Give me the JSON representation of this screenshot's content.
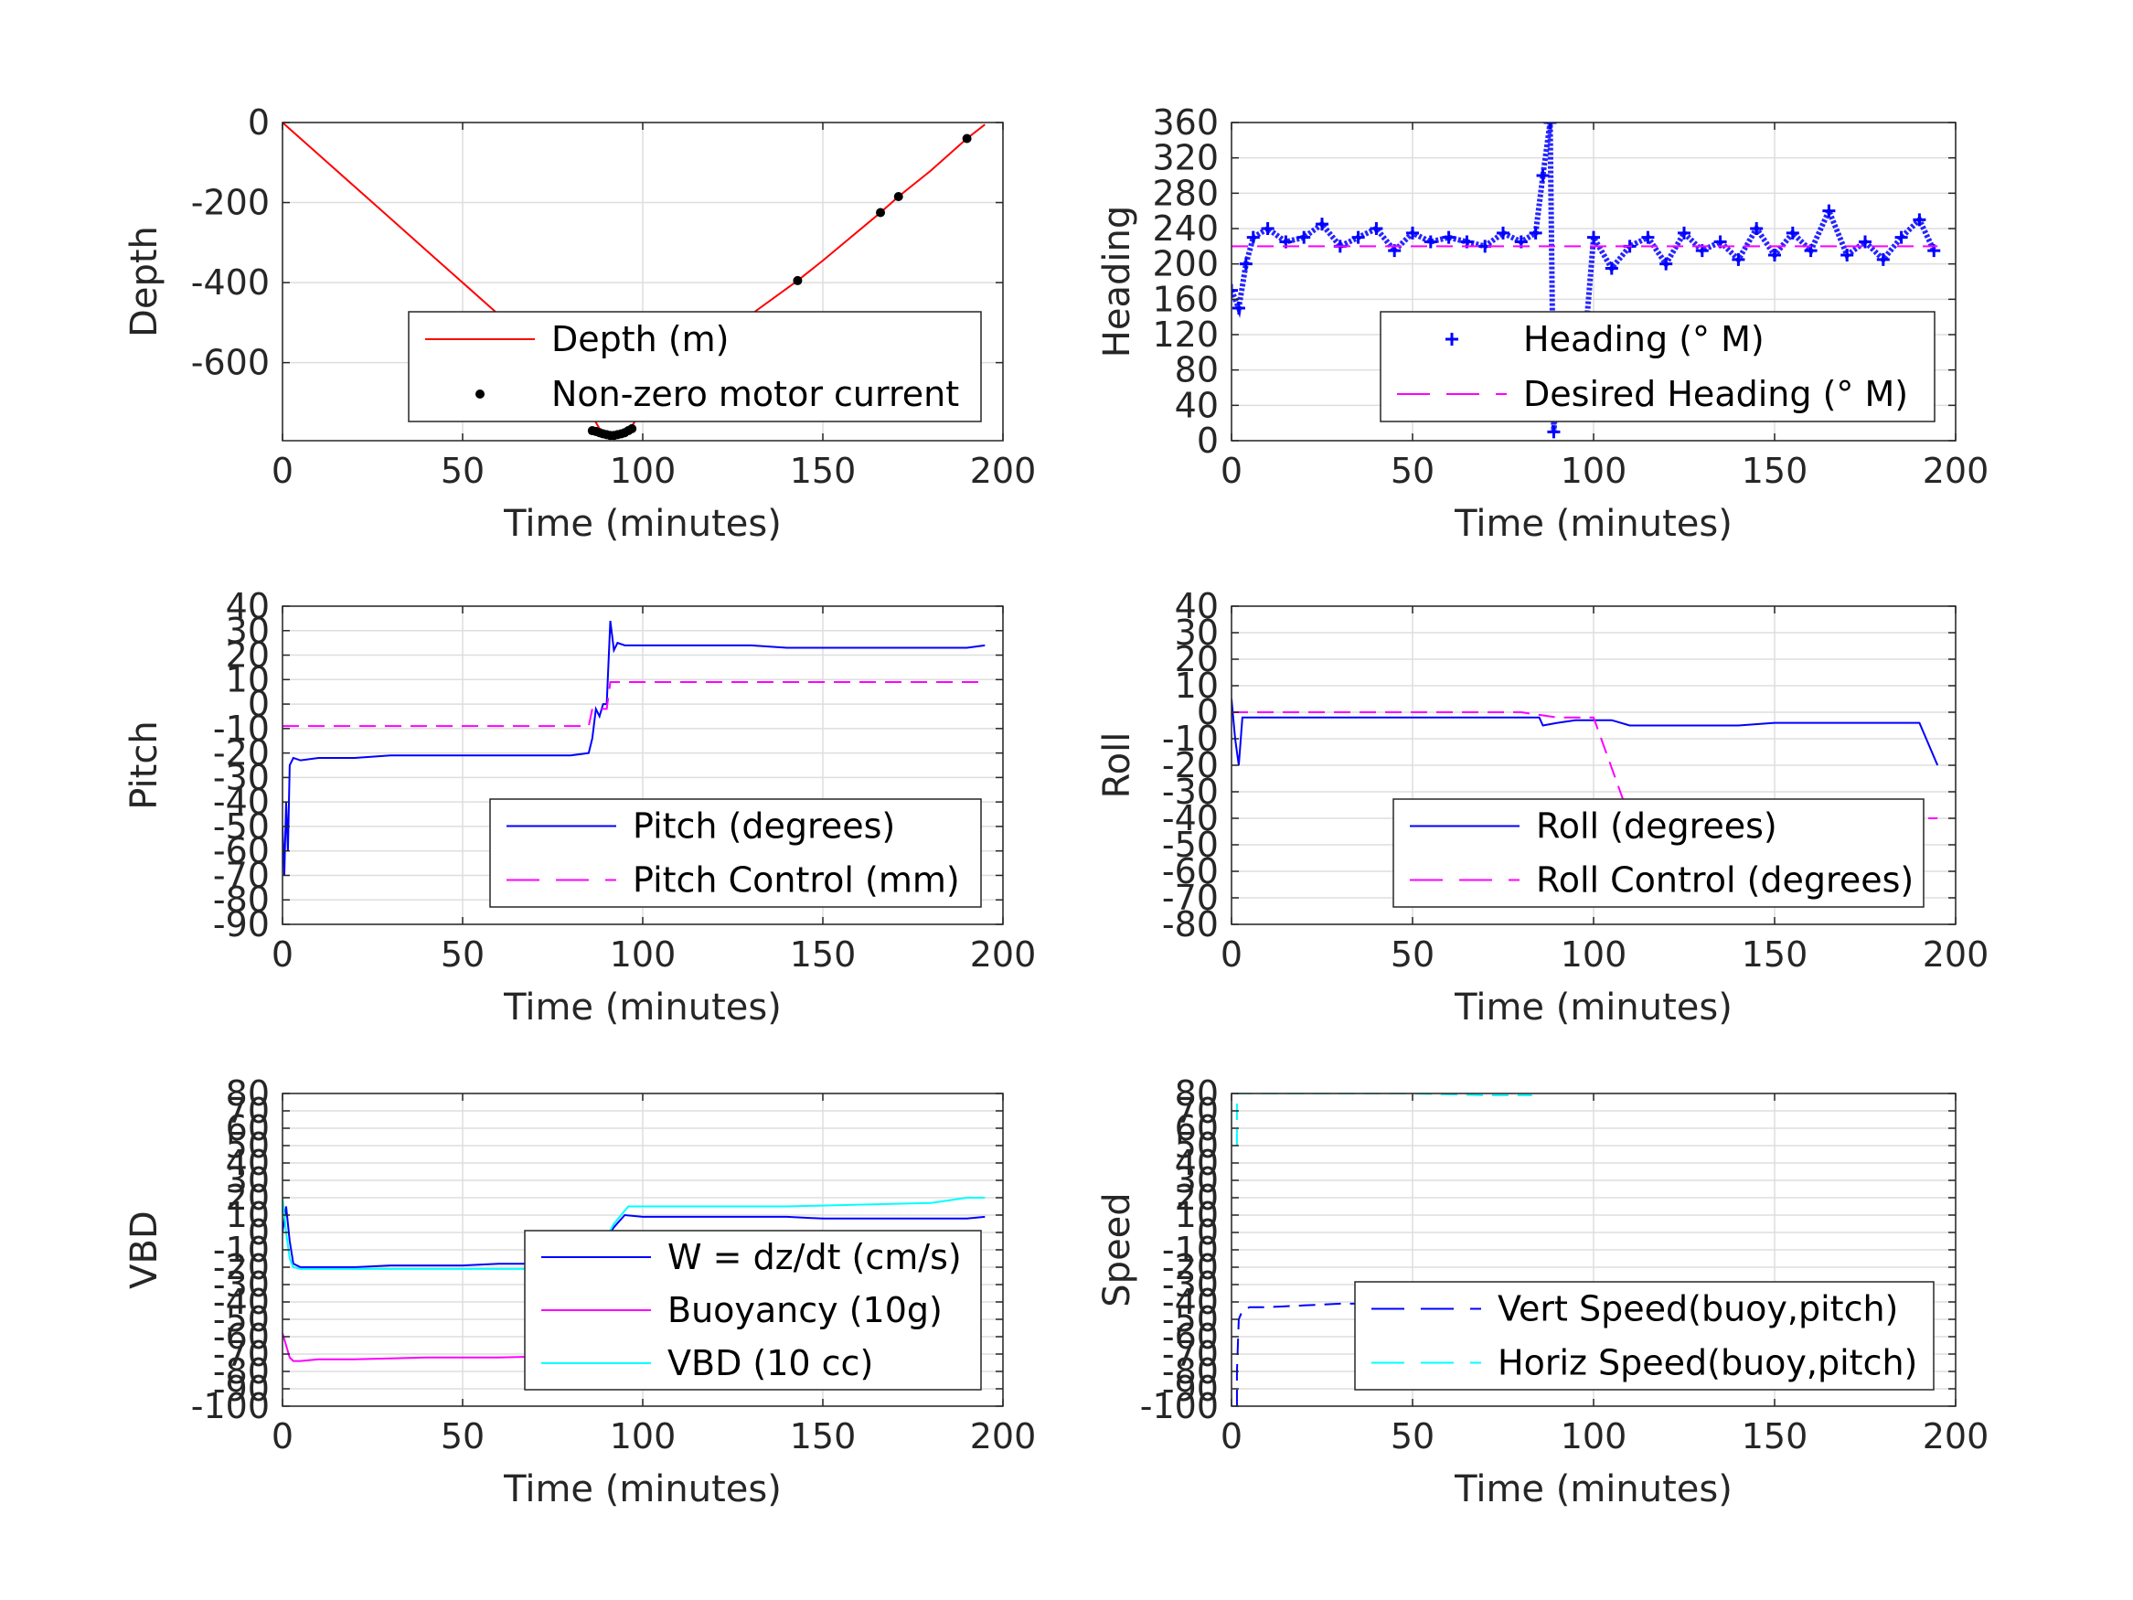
{
  "chart_data": [
    {
      "type": "line",
      "xlabel": "Time (minutes)",
      "ylabel": "Depth",
      "xlim": [
        0,
        200
      ],
      "ylim": [
        -795,
        0
      ],
      "xticks": [
        "0",
        "50",
        "100",
        "150",
        "200"
      ],
      "yticks": [
        0,
        -200,
        -400,
        -600
      ],
      "ytick_labels": [
        "0",
        "-200",
        "-400",
        "-600"
      ],
      "grid": true,
      "legend_position": "bottom-right",
      "series": [
        {
          "name": "Depth (m)",
          "color": "#ff0000",
          "style": "solid",
          "x": [
            0,
            10,
            20,
            30,
            40,
            50,
            60,
            70,
            80,
            88,
            92,
            96,
            100,
            110,
            120,
            130,
            143,
            150,
            160,
            166,
            171,
            180,
            190,
            195
          ],
          "y": [
            0,
            -80,
            -160,
            -240,
            -320,
            -400,
            -480,
            -560,
            -640,
            -765,
            -785,
            -770,
            -720,
            -640,
            -560,
            -480,
            -395,
            -345,
            -270,
            -225,
            -185,
            -120,
            -40,
            -5
          ]
        },
        {
          "name": "Non-zero motor current",
          "color": "#000000",
          "style": "points",
          "x": [
            86,
            87,
            88,
            89,
            90,
            91,
            92,
            93,
            94,
            95,
            96,
            97,
            143,
            166,
            171,
            190
          ],
          "y": [
            -770,
            -772,
            -775,
            -778,
            -780,
            -782,
            -782,
            -780,
            -778,
            -775,
            -770,
            -765,
            -395,
            -225,
            -185,
            -40
          ]
        }
      ]
    },
    {
      "type": "line",
      "xlabel": "Time (minutes)",
      "ylabel": "Heading",
      "xlim": [
        0,
        200
      ],
      "ylim": [
        0,
        360
      ],
      "xticks": [
        "0",
        "50",
        "100",
        "150",
        "200"
      ],
      "yticks": [
        0,
        40,
        80,
        120,
        160,
        200,
        240,
        280,
        320,
        360
      ],
      "ytick_labels": [
        "0",
        "40",
        "80",
        "120",
        "160",
        "200",
        "240",
        "280",
        "320",
        "360"
      ],
      "grid": true,
      "legend_position": "bottom-right",
      "series": [
        {
          "name": "Heading (° M)",
          "color": "#0000ff",
          "style": "plus",
          "x": [
            0,
            2,
            4,
            6,
            10,
            15,
            20,
            25,
            30,
            35,
            40,
            45,
            50,
            55,
            60,
            65,
            70,
            75,
            80,
            84,
            86,
            88,
            89,
            90,
            91,
            93,
            95,
            97,
            100,
            105,
            110,
            115,
            120,
            125,
            130,
            135,
            140,
            145,
            150,
            155,
            160,
            165,
            170,
            175,
            180,
            185,
            190,
            194
          ],
          "y": [
            170,
            150,
            200,
            230,
            240,
            225,
            230,
            245,
            220,
            230,
            240,
            215,
            235,
            225,
            230,
            225,
            220,
            235,
            225,
            235,
            300,
            360,
            10,
            60,
            100,
            70,
            40,
            80,
            230,
            195,
            220,
            230,
            200,
            235,
            215,
            225,
            205,
            240,
            210,
            235,
            215,
            260,
            210,
            225,
            205,
            230,
            250,
            215
          ]
        },
        {
          "name": "Desired Heading (° M)",
          "color": "#ff00ff",
          "style": "dashed",
          "x": [
            0,
            195
          ],
          "y": [
            220,
            220
          ]
        }
      ]
    },
    {
      "type": "line",
      "xlabel": "Time (minutes)",
      "ylabel": "Pitch",
      "xlim": [
        0,
        200
      ],
      "ylim": [
        -90,
        40
      ],
      "xticks": [
        "0",
        "50",
        "100",
        "150",
        "200"
      ],
      "yticks": [
        40,
        30,
        20,
        10,
        0,
        -10,
        -20,
        -30,
        -40,
        -50,
        -60,
        -70,
        -80,
        -90
      ],
      "ytick_labels": [
        "40",
        "30",
        "20",
        "10",
        "0",
        "-10",
        "-20",
        "-30",
        "-40",
        "-50",
        "-60",
        "-70",
        "-80",
        "-90"
      ],
      "grid": true,
      "legend_position": "bottom-right",
      "series": [
        {
          "name": "Pitch (degrees)",
          "color": "#0000ff",
          "style": "solid",
          "x": [
            0,
            0.5,
            1,
            1.5,
            2,
            3,
            5,
            10,
            20,
            30,
            40,
            50,
            60,
            70,
            80,
            85,
            86,
            87,
            88,
            89,
            90,
            91,
            92,
            93,
            95,
            100,
            110,
            120,
            130,
            140,
            150,
            160,
            170,
            180,
            190,
            195
          ],
          "y": [
            -50,
            -70,
            -40,
            -60,
            -25,
            -22,
            -23,
            -22,
            -22,
            -21,
            -21,
            -21,
            -21,
            -21,
            -21,
            -20,
            -14,
            -2,
            -5,
            0,
            0,
            34,
            22,
            25,
            24,
            24,
            24,
            24,
            24,
            23,
            23,
            23,
            23,
            23,
            23,
            24
          ]
        },
        {
          "name": "Pitch Control (mm)",
          "color": "#ff00ff",
          "style": "dashed",
          "x": [
            0,
            85,
            86,
            90,
            91,
            195
          ],
          "y": [
            -9,
            -9,
            -2,
            -2,
            9,
            9
          ]
        }
      ]
    },
    {
      "type": "line",
      "xlabel": "Time (minutes)",
      "ylabel": "Roll",
      "xlim": [
        0,
        200
      ],
      "ylim": [
        -80,
        40
      ],
      "xticks": [
        "0",
        "50",
        "100",
        "150",
        "200"
      ],
      "yticks": [
        40,
        30,
        20,
        10,
        0,
        -10,
        -20,
        -30,
        -40,
        -50,
        -60,
        -70,
        -80
      ],
      "ytick_labels": [
        "40",
        "30",
        "20",
        "10",
        "0",
        "-10",
        "-20",
        "-30",
        "-40",
        "-50",
        "-60",
        "-70",
        "-80"
      ],
      "grid": true,
      "legend_position": "bottom-right",
      "series": [
        {
          "name": "Roll (degrees)",
          "color": "#0000ff",
          "style": "solid",
          "x": [
            0,
            1,
            2,
            3,
            5,
            10,
            20,
            30,
            40,
            50,
            60,
            70,
            80,
            85,
            86,
            90,
            95,
            100,
            105,
            110,
            120,
            130,
            140,
            150,
            160,
            170,
            180,
            190,
            195
          ],
          "y": [
            5,
            -10,
            -20,
            -2,
            -2,
            -2,
            -2,
            -2,
            -2,
            -2,
            -2,
            -2,
            -2,
            -2,
            -5,
            -4,
            -3,
            -3,
            -3,
            -5,
            -5,
            -5,
            -5,
            -4,
            -4,
            -4,
            -4,
            -4,
            -20
          ]
        },
        {
          "name": "Roll Control (degrees)",
          "color": "#ff00ff",
          "style": "dashed",
          "x": [
            0,
            10,
            20,
            40,
            60,
            80,
            90,
            100,
            110,
            120,
            140,
            150,
            160,
            180,
            195
          ],
          "y": [
            0,
            0,
            0,
            0,
            0,
            0,
            -2,
            -2,
            -40,
            -40,
            -40,
            -40,
            -40,
            -40,
            -40
          ]
        }
      ]
    },
    {
      "type": "line",
      "xlabel": "Time (minutes)",
      "ylabel": "VBD",
      "xlim": [
        0,
        200
      ],
      "ylim": [
        -100,
        80
      ],
      "xticks": [
        "0",
        "50",
        "100",
        "150",
        "200"
      ],
      "yticks": [
        80,
        70,
        60,
        50,
        40,
        30,
        20,
        10,
        0,
        -10,
        -20,
        -30,
        -40,
        -50,
        -60,
        -70,
        -80,
        -90,
        -100
      ],
      "ytick_labels": [
        "80",
        "70",
        "60",
        "50",
        "40",
        "30",
        "20",
        "10",
        "0",
        "-10",
        "-20",
        "-30",
        "-40",
        "-50",
        "-60",
        "-70",
        "-80",
        "-90",
        "-100"
      ],
      "grid": true,
      "legend_position": "bottom-right",
      "series": [
        {
          "name": "W = dz/dt (cm/s)",
          "color": "#0000ff",
          "style": "solid",
          "x": [
            0,
            1,
            2,
            3,
            5,
            10,
            20,
            30,
            40,
            50,
            60,
            70,
            80,
            85,
            86,
            88,
            90,
            92,
            95,
            100,
            110,
            120,
            130,
            140,
            150,
            160,
            170,
            180,
            190,
            195
          ],
          "y": [
            0,
            15,
            -5,
            -18,
            -20,
            -20,
            -20,
            -19,
            -19,
            -19,
            -18,
            -18,
            -18,
            -18,
            -17,
            -10,
            -3,
            3,
            10,
            9,
            9,
            9,
            9,
            9,
            8,
            8,
            8,
            8,
            8,
            9
          ]
        },
        {
          "name": "Buoyancy (10g)",
          "color": "#ff00ff",
          "style": "solid",
          "x": [
            0,
            1,
            2,
            3,
            5,
            10,
            20,
            40,
            60,
            80,
            86
          ],
          "y": [
            -58,
            -65,
            -72,
            -74,
            -74,
            -73,
            -73,
            -72,
            -72,
            -71,
            -71
          ]
        },
        {
          "name": "VBD (10 cc)",
          "color": "#00ffff",
          "style": "solid",
          "x": [
            0,
            1,
            2,
            3,
            5,
            10,
            20,
            40,
            60,
            80,
            86,
            88,
            92,
            96,
            100,
            120,
            140,
            160,
            180,
            190,
            195
          ],
          "y": [
            20,
            0,
            -15,
            -20,
            -21,
            -21,
            -21,
            -21,
            -21,
            -21,
            -21,
            -10,
            5,
            15,
            15,
            15,
            15,
            16,
            17,
            20,
            20
          ]
        }
      ]
    },
    {
      "type": "line",
      "xlabel": "Time (minutes)",
      "ylabel": "Speed",
      "xlim": [
        0,
        200
      ],
      "ylim": [
        -100,
        80
      ],
      "xticks": [
        "0",
        "50",
        "100",
        "150",
        "200"
      ],
      "yticks": [
        80,
        70,
        60,
        50,
        40,
        30,
        20,
        10,
        0,
        -10,
        -20,
        -30,
        -40,
        -50,
        -60,
        -70,
        -80,
        -90,
        -100
      ],
      "ytick_labels": [
        "80",
        "70",
        "60",
        "50",
        "40",
        "30",
        "20",
        "10",
        "0",
        "-10",
        "-20",
        "-30",
        "-40",
        "-50",
        "-60",
        "-70",
        "-80",
        "-90",
        "-100"
      ],
      "grid": true,
      "legend_position": "bottom-right",
      "series": [
        {
          "name": "Vert Speed(buoy,pitch)",
          "color": "#0000ff",
          "style": "dashed",
          "x": [
            1.5,
            1.5,
            2,
            3,
            5,
            10,
            20,
            30,
            40,
            50,
            60,
            70,
            80,
            83
          ],
          "y": [
            -100,
            -80,
            -50,
            -45,
            -43,
            -43,
            -42,
            -41,
            -41,
            -40,
            -40,
            -39,
            -38,
            -38
          ]
        },
        {
          "name": "Horiz Speed(buoy,pitch)",
          "color": "#00ffff",
          "style": "dashed",
          "x": [
            1.5,
            1.5,
            2,
            30,
            50,
            70,
            83
          ],
          "y": [
            50,
            80,
            80,
            80,
            80,
            79,
            79
          ]
        }
      ]
    }
  ]
}
